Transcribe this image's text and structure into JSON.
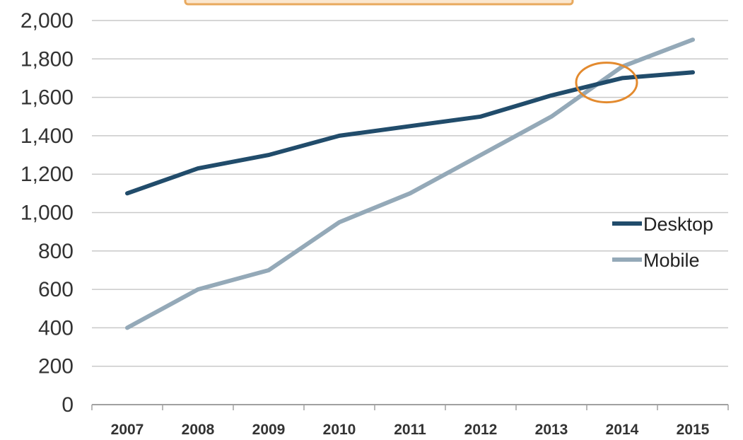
{
  "chart_data": {
    "type": "line",
    "categories": [
      "2007",
      "2008",
      "2009",
      "2010",
      "2011",
      "2012",
      "2013",
      "2014",
      "2015"
    ],
    "series": [
      {
        "name": "Desktop",
        "color": "#214c6b",
        "values": [
          1100,
          1230,
          1300,
          1400,
          1450,
          1500,
          1610,
          1700,
          1730
        ]
      },
      {
        "name": "Mobile",
        "color": "#94a9b8",
        "values": [
          400,
          600,
          700,
          950,
          1100,
          1300,
          1500,
          1760,
          1900
        ]
      }
    ],
    "yticks": [
      "0",
      "200",
      "400",
      "600",
      "800",
      "1,000",
      "1,200",
      "1,400",
      "1,600",
      "1,800",
      "2,000"
    ],
    "ylim": [
      0,
      2000
    ],
    "grid": true,
    "legend_position": "right",
    "highlight": {
      "shape": "ellipse",
      "color": "#e38a2e",
      "near_category": "2014",
      "near_value": 1670
    },
    "title_banner_color": "#e8a95e"
  }
}
